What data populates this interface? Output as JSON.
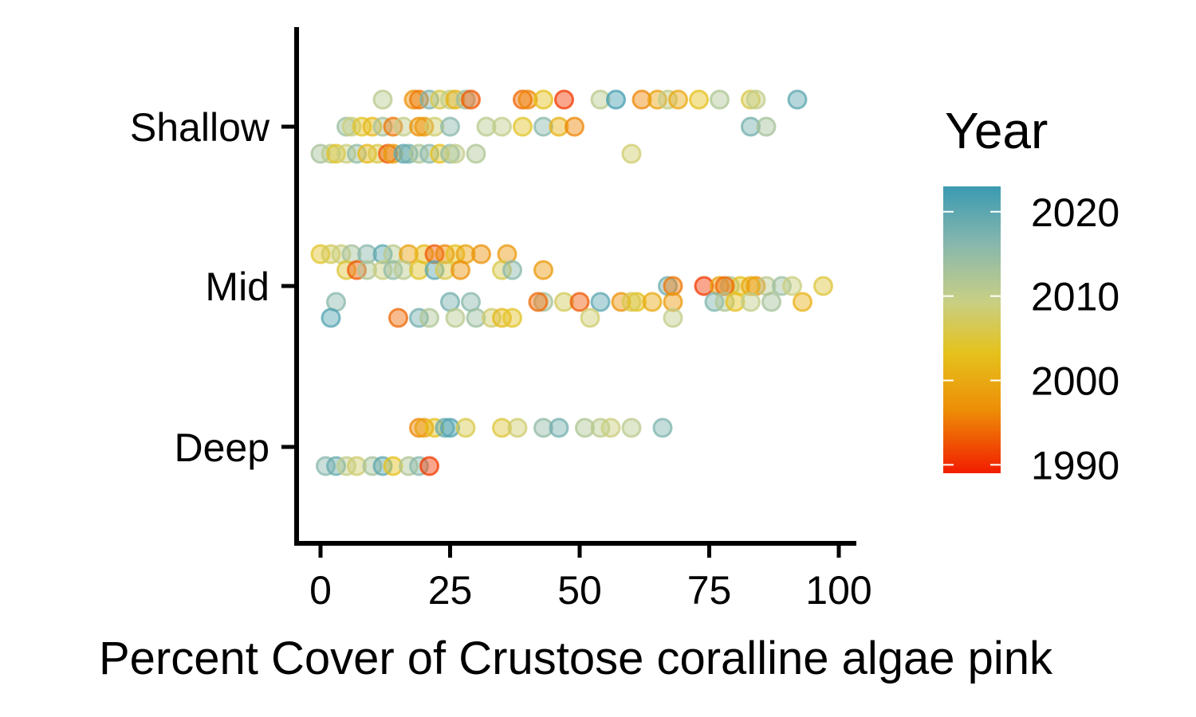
{
  "chart_data": {
    "type": "scatter",
    "title": "",
    "xlabel": "Percent Cover of Crustose coralline algae pink",
    "ylabel": "",
    "xlim": [
      -5,
      103
    ],
    "x_ticks": [
      "0",
      "25",
      "50",
      "75",
      "100"
    ],
    "categories": [
      "Shallow",
      "Mid",
      "Deep"
    ],
    "legend": {
      "title": "Year",
      "position": "right",
      "labels": [
        "2020",
        "2010",
        "2000",
        "1990"
      ],
      "range": [
        1989,
        2023
      ]
    },
    "colors": {
      "low": "#f21c00",
      "mid_low": "#ed8e07",
      "mid": "#e5c21d",
      "mid_high": "#c8cf85",
      "high_mid": "#87b7ad",
      "high": "#3a9ab2"
    },
    "grid": false,
    "points": [
      {
        "y": "Shallow",
        "x": 12,
        "year": 2011,
        "j": 0.17
      },
      {
        "y": "Shallow",
        "x": 18,
        "year": 1997,
        "j": 0.17
      },
      {
        "y": "Shallow",
        "x": 19,
        "year": 1995,
        "j": 0.17
      },
      {
        "y": "Shallow",
        "x": 21,
        "year": 2017,
        "j": 0.17
      },
      {
        "y": "Shallow",
        "x": 23,
        "year": 2006,
        "j": 0.17
      },
      {
        "y": "Shallow",
        "x": 25,
        "year": 2010,
        "j": 0.17
      },
      {
        "y": "Shallow",
        "x": 26,
        "year": 2001,
        "j": 0.17
      },
      {
        "y": "Shallow",
        "x": 28,
        "year": 2014,
        "j": 0.17
      },
      {
        "y": "Shallow",
        "x": 29,
        "year": 1993,
        "j": 0.17
      },
      {
        "y": "Shallow",
        "x": 39,
        "year": 1994,
        "j": 0.17
      },
      {
        "y": "Shallow",
        "x": 40,
        "year": 1996,
        "j": 0.17
      },
      {
        "y": "Shallow",
        "x": 43,
        "year": 2003,
        "j": 0.17
      },
      {
        "y": "Shallow",
        "x": 47,
        "year": 1991,
        "j": 0.17
      },
      {
        "y": "Shallow",
        "x": 54,
        "year": 2011,
        "j": 0.17
      },
      {
        "y": "Shallow",
        "x": 57,
        "year": 2022,
        "j": 0.17
      },
      {
        "y": "Shallow",
        "x": 62,
        "year": 1996,
        "j": 0.17
      },
      {
        "y": "Shallow",
        "x": 65,
        "year": 1999,
        "j": 0.17
      },
      {
        "y": "Shallow",
        "x": 67,
        "year": 2010,
        "j": 0.17
      },
      {
        "y": "Shallow",
        "x": 69,
        "year": 2000,
        "j": 0.17
      },
      {
        "y": "Shallow",
        "x": 73,
        "year": 2003,
        "j": 0.17
      },
      {
        "y": "Shallow",
        "x": 77,
        "year": 2012,
        "j": 0.17
      },
      {
        "y": "Shallow",
        "x": 83,
        "year": 2006,
        "j": 0.17
      },
      {
        "y": "Shallow",
        "x": 84,
        "year": 2010,
        "j": 0.17
      },
      {
        "y": "Shallow",
        "x": 92,
        "year": 2020,
        "j": 0.17
      },
      {
        "y": "Shallow",
        "x": 5,
        "year": 2014,
        "j": 0.0
      },
      {
        "y": "Shallow",
        "x": 6,
        "year": 2009,
        "j": 0.0
      },
      {
        "y": "Shallow",
        "x": 8,
        "year": 2004,
        "j": 0.0
      },
      {
        "y": "Shallow",
        "x": 10,
        "year": 2002,
        "j": 0.0
      },
      {
        "y": "Shallow",
        "x": 12,
        "year": 2013,
        "j": 0.0
      },
      {
        "y": "Shallow",
        "x": 14,
        "year": 1995,
        "j": 0.0
      },
      {
        "y": "Shallow",
        "x": 16,
        "year": 2010,
        "j": 0.0
      },
      {
        "y": "Shallow",
        "x": 19,
        "year": 1997,
        "j": 0.0
      },
      {
        "y": "Shallow",
        "x": 20,
        "year": 1998,
        "j": 0.0
      },
      {
        "y": "Shallow",
        "x": 22,
        "year": 2008,
        "j": 0.0
      },
      {
        "y": "Shallow",
        "x": 25,
        "year": 2016,
        "j": 0.0
      },
      {
        "y": "Shallow",
        "x": 32,
        "year": 2011,
        "j": 0.0
      },
      {
        "y": "Shallow",
        "x": 35,
        "year": 2010,
        "j": 0.0
      },
      {
        "y": "Shallow",
        "x": 39,
        "year": 2004,
        "j": 0.0
      },
      {
        "y": "Shallow",
        "x": 43,
        "year": 2016,
        "j": 0.0
      },
      {
        "y": "Shallow",
        "x": 46,
        "year": 2001,
        "j": 0.0
      },
      {
        "y": "Shallow",
        "x": 49,
        "year": 1996,
        "j": 0.0
      },
      {
        "y": "Shallow",
        "x": 83,
        "year": 2018,
        "j": 0.0
      },
      {
        "y": "Shallow",
        "x": 86,
        "year": 2013,
        "j": 0.0
      },
      {
        "y": "Shallow",
        "x": 0,
        "year": 2013,
        "j": -0.17
      },
      {
        "y": "Shallow",
        "x": 2,
        "year": 2011,
        "j": -0.17
      },
      {
        "y": "Shallow",
        "x": 3,
        "year": 2004,
        "j": -0.17
      },
      {
        "y": "Shallow",
        "x": 5,
        "year": 2009,
        "j": -0.17
      },
      {
        "y": "Shallow",
        "x": 7,
        "year": 2015,
        "j": -0.17
      },
      {
        "y": "Shallow",
        "x": 9,
        "year": 2002,
        "j": -0.17
      },
      {
        "y": "Shallow",
        "x": 11,
        "year": 2006,
        "j": -0.17
      },
      {
        "y": "Shallow",
        "x": 13,
        "year": 1993,
        "j": -0.17
      },
      {
        "y": "Shallow",
        "x": 14,
        "year": 1998,
        "j": -0.17
      },
      {
        "y": "Shallow",
        "x": 16,
        "year": 2020,
        "j": -0.17
      },
      {
        "y": "Shallow",
        "x": 17,
        "year": 2018,
        "j": -0.17
      },
      {
        "y": "Shallow",
        "x": 19,
        "year": 2012,
        "j": -0.17
      },
      {
        "y": "Shallow",
        "x": 21,
        "year": 2016,
        "j": -0.17
      },
      {
        "y": "Shallow",
        "x": 23,
        "year": 2003,
        "j": -0.17
      },
      {
        "y": "Shallow",
        "x": 25,
        "year": 2015,
        "j": -0.17
      },
      {
        "y": "Shallow",
        "x": 26,
        "year": 2010,
        "j": -0.17
      },
      {
        "y": "Shallow",
        "x": 30,
        "year": 2012,
        "j": -0.17
      },
      {
        "y": "Shallow",
        "x": 60,
        "year": 2008,
        "j": -0.17
      },
      {
        "y": "Mid",
        "x": 0,
        "year": 2004,
        "j": 0.2
      },
      {
        "y": "Mid",
        "x": 2,
        "year": 2007,
        "j": 0.2
      },
      {
        "y": "Mid",
        "x": 4,
        "year": 2009,
        "j": 0.2
      },
      {
        "y": "Mid",
        "x": 6,
        "year": 2013,
        "j": 0.2
      },
      {
        "y": "Mid",
        "x": 9,
        "year": 2016,
        "j": 0.2
      },
      {
        "y": "Mid",
        "x": 12,
        "year": 2020,
        "j": 0.2
      },
      {
        "y": "Mid",
        "x": 14,
        "year": 2011,
        "j": 0.2
      },
      {
        "y": "Mid",
        "x": 17,
        "year": 1999,
        "j": 0.2
      },
      {
        "y": "Mid",
        "x": 20,
        "year": 2002,
        "j": 0.2
      },
      {
        "y": "Mid",
        "x": 22,
        "year": 1993,
        "j": 0.2
      },
      {
        "y": "Mid",
        "x": 24,
        "year": 1996,
        "j": 0.2
      },
      {
        "y": "Mid",
        "x": 26,
        "year": 2003,
        "j": 0.2
      },
      {
        "y": "Mid",
        "x": 28,
        "year": 1999,
        "j": 0.2
      },
      {
        "y": "Mid",
        "x": 31,
        "year": 1997,
        "j": 0.2
      },
      {
        "y": "Mid",
        "x": 36,
        "year": 1998,
        "j": 0.2
      },
      {
        "y": "Mid",
        "x": 5,
        "year": 2005,
        "j": 0.1
      },
      {
        "y": "Mid",
        "x": 7,
        "year": 1993,
        "j": 0.1
      },
      {
        "y": "Mid",
        "x": 9,
        "year": 2012,
        "j": 0.1
      },
      {
        "y": "Mid",
        "x": 12,
        "year": 2009,
        "j": 0.1
      },
      {
        "y": "Mid",
        "x": 14,
        "year": 2015,
        "j": 0.1
      },
      {
        "y": "Mid",
        "x": 16,
        "year": 2011,
        "j": 0.1
      },
      {
        "y": "Mid",
        "x": 19,
        "year": 2004,
        "j": 0.1
      },
      {
        "y": "Mid",
        "x": 22,
        "year": 2020,
        "j": 0.1
      },
      {
        "y": "Mid",
        "x": 24,
        "year": 2006,
        "j": 0.1
      },
      {
        "y": "Mid",
        "x": 27,
        "year": 1997,
        "j": 0.1
      },
      {
        "y": "Mid",
        "x": 35,
        "year": 2006,
        "j": 0.1
      },
      {
        "y": "Mid",
        "x": 37,
        "year": 2016,
        "j": 0.1
      },
      {
        "y": "Mid",
        "x": 43,
        "year": 1998,
        "j": 0.1
      },
      {
        "y": "Mid",
        "x": 67,
        "year": 2018,
        "j": 0.0
      },
      {
        "y": "Mid",
        "x": 68,
        "year": 1995,
        "j": 0.0
      },
      {
        "y": "Mid",
        "x": 74,
        "year": 1991,
        "j": 0.0
      },
      {
        "y": "Mid",
        "x": 77,
        "year": 1999,
        "j": 0.0
      },
      {
        "y": "Mid",
        "x": 79,
        "year": 2012,
        "j": 0.0
      },
      {
        "y": "Mid",
        "x": 81,
        "year": 2003,
        "j": 0.0
      },
      {
        "y": "Mid",
        "x": 84,
        "year": 1997,
        "j": 0.0
      },
      {
        "y": "Mid",
        "x": 86,
        "year": 2011,
        "j": 0.0
      },
      {
        "y": "Mid",
        "x": 89,
        "year": 2014,
        "j": 0.0
      },
      {
        "y": "Mid",
        "x": 91,
        "year": 2009,
        "j": 0.0
      },
      {
        "y": "Mid",
        "x": 97,
        "year": 2005,
        "j": 0.0
      },
      {
        "y": "Mid",
        "x": 78,
        "year": 1994,
        "j": 0.0
      },
      {
        "y": "Mid",
        "x": 83,
        "year": 2000,
        "j": 0.0
      },
      {
        "y": "Mid",
        "x": 3,
        "year": 2016,
        "j": -0.1
      },
      {
        "y": "Mid",
        "x": 25,
        "year": 2018,
        "j": -0.1
      },
      {
        "y": "Mid",
        "x": 29,
        "year": 2016,
        "j": -0.1
      },
      {
        "y": "Mid",
        "x": 43,
        "year": 2013,
        "j": -0.1
      },
      {
        "y": "Mid",
        "x": 47,
        "year": 2007,
        "j": -0.1
      },
      {
        "y": "Mid",
        "x": 50,
        "year": 1993,
        "j": -0.1
      },
      {
        "y": "Mid",
        "x": 54,
        "year": 2020,
        "j": -0.1
      },
      {
        "y": "Mid",
        "x": 58,
        "year": 1997,
        "j": -0.1
      },
      {
        "y": "Mid",
        "x": 61,
        "year": 2003,
        "j": -0.1
      },
      {
        "y": "Mid",
        "x": 64,
        "year": 2000,
        "j": -0.1
      },
      {
        "y": "Mid",
        "x": 68,
        "year": 1998,
        "j": -0.1
      },
      {
        "y": "Mid",
        "x": 76,
        "year": 2017,
        "j": -0.1
      },
      {
        "y": "Mid",
        "x": 78,
        "year": 2012,
        "j": -0.1
      },
      {
        "y": "Mid",
        "x": 80,
        "year": 2003,
        "j": -0.1
      },
      {
        "y": "Mid",
        "x": 83,
        "year": 2010,
        "j": -0.1
      },
      {
        "y": "Mid",
        "x": 87,
        "year": 2013,
        "j": -0.1
      },
      {
        "y": "Mid",
        "x": 93,
        "year": 2001,
        "j": -0.1
      },
      {
        "y": "Mid",
        "x": 42,
        "year": 1994,
        "j": -0.1
      },
      {
        "y": "Mid",
        "x": 60,
        "year": 2006,
        "j": -0.1
      },
      {
        "y": "Mid",
        "x": 2,
        "year": 2021,
        "j": -0.2
      },
      {
        "y": "Mid",
        "x": 15,
        "year": 1994,
        "j": -0.2
      },
      {
        "y": "Mid",
        "x": 19,
        "year": 2018,
        "j": -0.2
      },
      {
        "y": "Mid",
        "x": 21,
        "year": 2012,
        "j": -0.2
      },
      {
        "y": "Mid",
        "x": 26,
        "year": 2011,
        "j": -0.2
      },
      {
        "y": "Mid",
        "x": 30,
        "year": 2014,
        "j": -0.2
      },
      {
        "y": "Mid",
        "x": 33,
        "year": 2008,
        "j": -0.2
      },
      {
        "y": "Mid",
        "x": 35,
        "year": 2002,
        "j": -0.2
      },
      {
        "y": "Mid",
        "x": 37,
        "year": 2004,
        "j": -0.2
      },
      {
        "y": "Mid",
        "x": 52,
        "year": 2008,
        "j": -0.2
      },
      {
        "y": "Mid",
        "x": 68,
        "year": 2010,
        "j": -0.2
      },
      {
        "y": "Deep",
        "x": 19,
        "year": 1996,
        "j": 0.12
      },
      {
        "y": "Deep",
        "x": 20,
        "year": 1999,
        "j": 0.12
      },
      {
        "y": "Deep",
        "x": 22,
        "year": 2003,
        "j": 0.12
      },
      {
        "y": "Deep",
        "x": 24,
        "year": 2019,
        "j": 0.12
      },
      {
        "y": "Deep",
        "x": 25,
        "year": 2021,
        "j": 0.12
      },
      {
        "y": "Deep",
        "x": 28,
        "year": 2006,
        "j": 0.12
      },
      {
        "y": "Deep",
        "x": 35,
        "year": 2005,
        "j": 0.12
      },
      {
        "y": "Deep",
        "x": 38,
        "year": 2008,
        "j": 0.12
      },
      {
        "y": "Deep",
        "x": 43,
        "year": 2015,
        "j": 0.12
      },
      {
        "y": "Deep",
        "x": 46,
        "year": 2018,
        "j": 0.12
      },
      {
        "y": "Deep",
        "x": 51,
        "year": 2012,
        "j": 0.12
      },
      {
        "y": "Deep",
        "x": 54,
        "year": 2011,
        "j": 0.12
      },
      {
        "y": "Deep",
        "x": 56,
        "year": 2009,
        "j": 0.12
      },
      {
        "y": "Deep",
        "x": 60,
        "year": 2011,
        "j": 0.12
      },
      {
        "y": "Deep",
        "x": 66,
        "year": 2017,
        "j": 0.12
      },
      {
        "y": "Deep",
        "x": 1,
        "year": 2016,
        "j": -0.12
      },
      {
        "y": "Deep",
        "x": 3,
        "year": 2019,
        "j": -0.12
      },
      {
        "y": "Deep",
        "x": 5,
        "year": 2010,
        "j": -0.12
      },
      {
        "y": "Deep",
        "x": 7,
        "year": 2008,
        "j": -0.12
      },
      {
        "y": "Deep",
        "x": 10,
        "year": 2013,
        "j": -0.12
      },
      {
        "y": "Deep",
        "x": 12,
        "year": 2020,
        "j": -0.12
      },
      {
        "y": "Deep",
        "x": 14,
        "year": 2003,
        "j": -0.12
      },
      {
        "y": "Deep",
        "x": 17,
        "year": 2012,
        "j": -0.12
      },
      {
        "y": "Deep",
        "x": 19,
        "year": 2016,
        "j": -0.12
      },
      {
        "y": "Deep",
        "x": 21,
        "year": 1991,
        "j": -0.12
      }
    ]
  }
}
